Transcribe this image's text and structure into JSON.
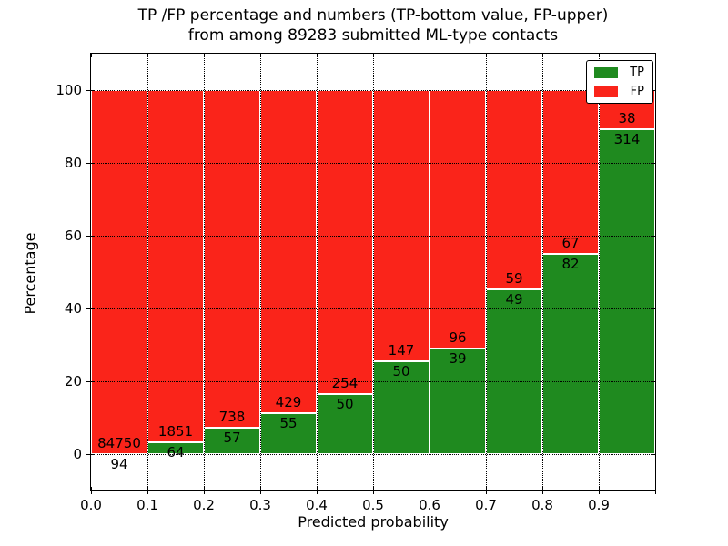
{
  "figure": {
    "title_line1": "TP /FP percentage and numbers (TP-bottom value, FP-upper)",
    "title_line2": "from among 89283 submitted ML-type contacts"
  },
  "chart_data": {
    "type": "bar",
    "stacked": true,
    "title": "TP /FP percentage and numbers (TP-bottom value, FP-upper)\nfrom among 89283 submitted ML-type contacts",
    "total_submitted": 89283,
    "xlabel": "Predicted probability",
    "ylabel": "Percentage",
    "xlim": [
      0.0,
      1.0
    ],
    "ylim": [
      -10,
      110
    ],
    "bar_width": 0.1,
    "grid": "dotted",
    "legend_position": "upper right",
    "x_tick_labels": [
      "0.0",
      "0.1",
      "0.2",
      "0.3",
      "0.4",
      "0.5",
      "0.6",
      "0.7",
      "0.8",
      "0.9"
    ],
    "y_ticks": [
      0,
      20,
      40,
      60,
      80,
      100
    ],
    "categories": [
      "0.0-0.1",
      "0.1-0.2",
      "0.2-0.3",
      "0.3-0.4",
      "0.4-0.5",
      "0.5-0.6",
      "0.6-0.7",
      "0.7-0.8",
      "0.8-0.9",
      "0.9-1.0"
    ],
    "series": [
      {
        "name": "TP",
        "color": "#1f8a1f",
        "counts": [
          94,
          64,
          57,
          55,
          50,
          50,
          39,
          49,
          82,
          314
        ],
        "pct": [
          0.11,
          3.34,
          7.17,
          11.36,
          16.45,
          25.38,
          28.89,
          45.37,
          55.03,
          89.2
        ]
      },
      {
        "name": "FP",
        "color": "#fa241a",
        "counts": [
          84750,
          1851,
          738,
          429,
          254,
          147,
          96,
          59,
          67,
          38
        ],
        "pct": [
          99.89,
          96.66,
          92.83,
          88.64,
          83.55,
          74.62,
          71.11,
          54.63,
          44.97,
          10.8
        ]
      }
    ],
    "legend": {
      "items": [
        {
          "label": "TP",
          "color": "#1f8a1f"
        },
        {
          "label": "FP",
          "color": "#fa241a"
        }
      ]
    }
  }
}
